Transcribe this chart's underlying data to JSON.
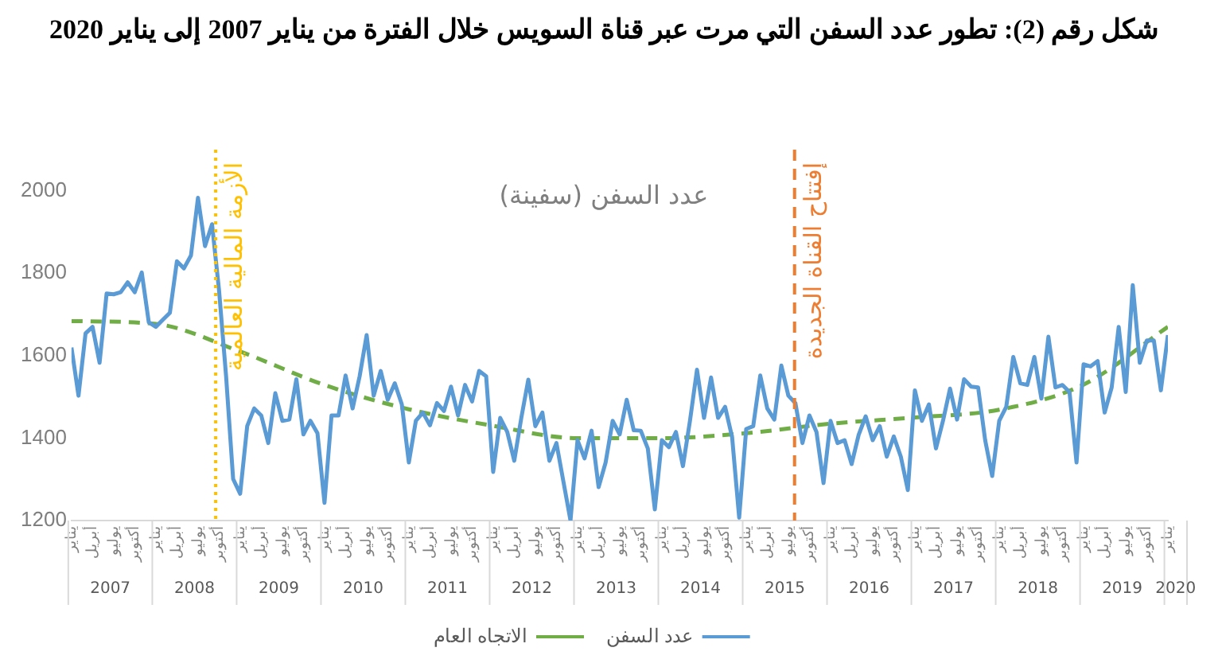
{
  "chart_data": {
    "type": "line",
    "title": "شكل رقم (2): تطور عدد السفن التي مرت عبر قناة السويس خلال الفترة من يناير 2007 إلى يناير 2020",
    "subtitle": "عدد السفن (سفينة)",
    "categories": [
      "يناير",
      null,
      null,
      "أبريل",
      null,
      null,
      "يوليو",
      null,
      null,
      "أكتوبر",
      null,
      null,
      "يناير",
      null,
      null,
      "أبريل",
      null,
      null,
      "يوليو",
      null,
      null,
      "أكتوبر",
      null,
      null,
      "يناير",
      null,
      null,
      "أبريل",
      null,
      null,
      "يوليو",
      null,
      null,
      "أكتوبر",
      null,
      null,
      "يناير",
      null,
      null,
      "أبريل",
      null,
      null,
      "يوليو",
      null,
      null,
      "أكتوبر",
      null,
      null,
      "يناير",
      null,
      null,
      "أبريل",
      null,
      null,
      "يوليو",
      null,
      null,
      "أكتوبر",
      null,
      null,
      "يناير",
      null,
      null,
      "أبريل",
      null,
      null,
      "يوليو",
      null,
      null,
      "أكتوبر",
      null,
      null,
      "يناير",
      null,
      null,
      "أبريل",
      null,
      null,
      "يوليو",
      null,
      null,
      "أكتوبر",
      null,
      null,
      "يناير",
      null,
      null,
      "أبريل",
      null,
      null,
      "يوليو",
      null,
      null,
      "أكتوبر",
      null,
      null,
      "يناير",
      null,
      null,
      "أبريل",
      null,
      null,
      "يوليو",
      null,
      null,
      "أكتوبر",
      null,
      null,
      "يناير",
      null,
      null,
      "أبريل",
      null,
      null,
      "يوليو",
      null,
      null,
      "أكتوبر",
      null,
      null,
      "يناير",
      null,
      null,
      "أبريل",
      null,
      null,
      "يوليو",
      null,
      null,
      "أكتوبر",
      null,
      null,
      "يناير",
      null,
      null,
      "أبريل",
      null,
      null,
      "يوليو",
      null,
      null,
      "أكتوبر",
      null,
      null,
      "يناير",
      null,
      null,
      "أبريل",
      null,
      null,
      "يوليو",
      null,
      null,
      "أكتوبر",
      null,
      null,
      "يناير"
    ],
    "series": [
      {
        "name": "عدد السفن",
        "color": "#5b9bd5",
        "values": [
          1620,
          1503,
          1654,
          1670,
          1583,
          1751,
          1749,
          1754,
          1778,
          1754,
          1802,
          1681,
          1670,
          1687,
          1704,
          1829,
          1812,
          1843,
          1983,
          1866,
          1919,
          1758,
          1550,
          1301,
          1265,
          1429,
          1472,
          1455,
          1388,
          1509,
          1442,
          1445,
          1543,
          1409,
          1442,
          1412,
          1243,
          1455,
          1455,
          1552,
          1472,
          1550,
          1650,
          1503,
          1563,
          1493,
          1533,
          1482,
          1341,
          1442,
          1462,
          1431,
          1485,
          1466,
          1525,
          1455,
          1529,
          1489,
          1563,
          1550,
          1318,
          1449,
          1415,
          1345,
          1449,
          1542,
          1429,
          1462,
          1345,
          1388,
          1294,
          1200,
          1395,
          1351,
          1418,
          1281,
          1341,
          1442,
          1409,
          1493,
          1419,
          1418,
          1375,
          1227,
          1395,
          1378,
          1415,
          1332,
          1442,
          1566,
          1449,
          1547,
          1449,
          1476,
          1402,
          1207,
          1422,
          1429,
          1552,
          1472,
          1445,
          1576,
          1503,
          1485,
          1388,
          1455,
          1415,
          1291,
          1442,
          1388,
          1395,
          1337,
          1408,
          1453,
          1395,
          1429,
          1355,
          1404,
          1355,
          1274,
          1516,
          1442,
          1482,
          1375,
          1442,
          1520,
          1445,
          1543,
          1525,
          1523,
          1395,
          1308,
          1442,
          1476,
          1597,
          1533,
          1529,
          1597,
          1496,
          1646,
          1523,
          1529,
          1512,
          1341,
          1579,
          1574,
          1587,
          1462,
          1523,
          1670,
          1512,
          1771,
          1583,
          1637,
          1637,
          1516,
          1650
        ]
      },
      {
        "name": "الاتجاه العام",
        "color": "#70ad47",
        "line_style": "dashed",
        "values": [
          1684,
          null,
          null,
          null,
          null,
          null,
          null,
          null,
          null,
          null,
          null,
          null,
          1677,
          null,
          null,
          null,
          null,
          null,
          null,
          null,
          null,
          null,
          null,
          null,
          1610,
          null,
          null,
          null,
          null,
          null,
          null,
          null,
          null,
          null,
          null,
          null,
          1529,
          null,
          null,
          null,
          null,
          null,
          null,
          null,
          null,
          null,
          null,
          null,
          1470,
          null,
          null,
          null,
          null,
          null,
          null,
          null,
          null,
          null,
          null,
          null,
          1430,
          null,
          null,
          null,
          null,
          null,
          null,
          null,
          null,
          null,
          null,
          null,
          1400,
          null,
          null,
          null,
          null,
          null,
          null,
          null,
          null,
          null,
          null,
          null,
          1400,
          null,
          null,
          null,
          null,
          null,
          null,
          null,
          null,
          null,
          null,
          null,
          1412,
          null,
          null,
          null,
          null,
          null,
          null,
          null,
          null,
          null,
          null,
          null,
          1435,
          null,
          null,
          null,
          null,
          null,
          null,
          null,
          null,
          null,
          null,
          null,
          1450,
          null,
          null,
          null,
          null,
          null,
          null,
          null,
          null,
          null,
          null,
          null,
          1469,
          null,
          null,
          null,
          null,
          null,
          null,
          null,
          null,
          null,
          null,
          null,
          1530,
          null,
          null,
          null,
          null,
          null,
          null,
          null,
          null,
          null,
          null,
          null,
          1670
        ]
      }
    ],
    "ylim": [
      1200,
      2100
    ],
    "yticks": [
      1200,
      1400,
      1600,
      1800,
      2000
    ],
    "grid": false,
    "legend": "bottom",
    "ref_lines": [
      {
        "axis": "x",
        "label": "الأزمة المالية العالمية",
        "color": "#ffc000",
        "line_style": "dotted"
      },
      {
        "axis": "x",
        "label": "إفتتاح القناة الجديدة",
        "color": "#ed7d31",
        "line_style": "dashed"
      }
    ],
    "annotations": [
      "2007",
      "2008",
      "2009",
      "2010",
      "2011",
      "2012",
      "2013",
      "2014",
      "2015",
      "2016",
      "2017",
      "2018",
      "2019",
      "2020"
    ]
  }
}
